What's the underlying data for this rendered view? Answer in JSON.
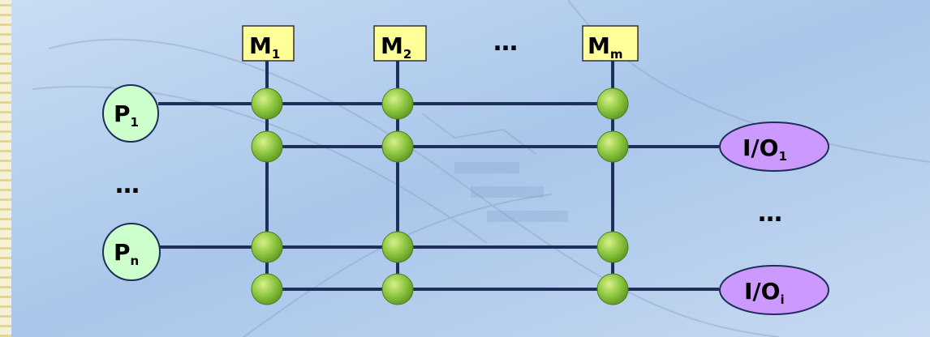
{
  "diagram": {
    "memories": [
      {
        "letter": "M",
        "sub": "1"
      },
      {
        "letter": "M",
        "sub": "2"
      },
      {
        "letter": "M",
        "sub": "m"
      }
    ],
    "memory_ellipsis": "…",
    "processors": [
      {
        "letter": "P",
        "sub": "1"
      },
      {
        "letter": "P",
        "sub": "n"
      }
    ],
    "processor_ellipsis": "…",
    "io_modules": [
      {
        "letter": "I/O",
        "sub": "1"
      },
      {
        "letter": "I/O",
        "sub": "i"
      }
    ],
    "io_ellipsis": "…",
    "colors": {
      "memory_fill": "#FFFF99",
      "processor_fill": "#CCFFCC",
      "io_fill": "#CC99FF",
      "bus_line": "#1F2F5C",
      "switch_node": "#8CC63F"
    }
  }
}
